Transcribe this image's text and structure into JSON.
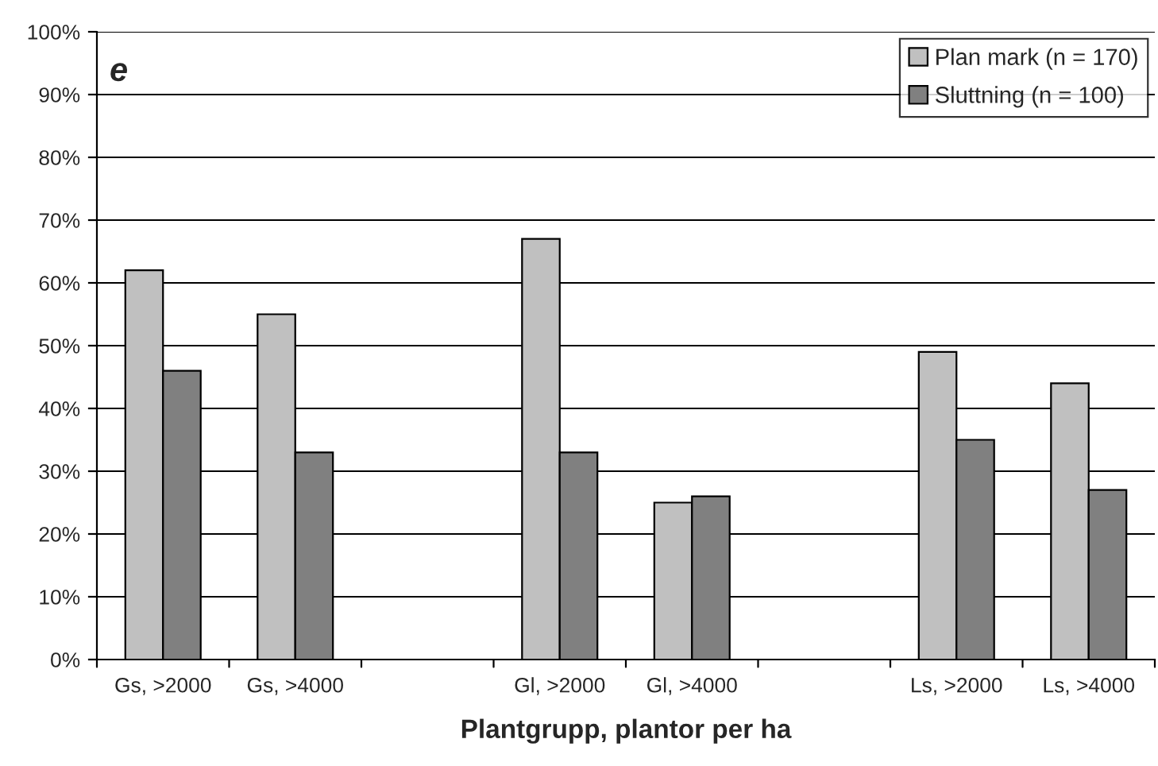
{
  "chart_data": {
    "type": "bar",
    "xlabel": "Plantgrupp, plantor per ha",
    "annotations": [
      "e"
    ],
    "categories": [
      "Gs, >2000",
      "Gs, >4000",
      null,
      "Gl, >2000",
      "Gl, >4000",
      null,
      "Ls, >2000",
      "Ls, >4000"
    ],
    "series": [
      {
        "name": "Plan mark (n = 170)",
        "color": "#c0c0c0",
        "values": [
          62,
          55,
          null,
          67,
          25,
          null,
          49,
          44
        ]
      },
      {
        "name": "Sluttning (n = 100)",
        "color": "#808080",
        "values": [
          46,
          33,
          null,
          33,
          26,
          null,
          35,
          27
        ]
      }
    ],
    "ylim": [
      0,
      100
    ],
    "yticks": [
      {
        "value": 0,
        "label": "0%"
      },
      {
        "value": 10,
        "label": "10%"
      },
      {
        "value": 20,
        "label": "20%"
      },
      {
        "value": 30,
        "label": "30%"
      },
      {
        "value": 40,
        "label": "40%"
      },
      {
        "value": 50,
        "label": "50%"
      },
      {
        "value": 60,
        "label": "60%"
      },
      {
        "value": 70,
        "label": "70%"
      },
      {
        "value": 80,
        "label": "80%"
      },
      {
        "value": 90,
        "label": "90%"
      },
      {
        "value": 100,
        "label": "100%"
      }
    ],
    "grid": "y",
    "legend": "top right"
  }
}
